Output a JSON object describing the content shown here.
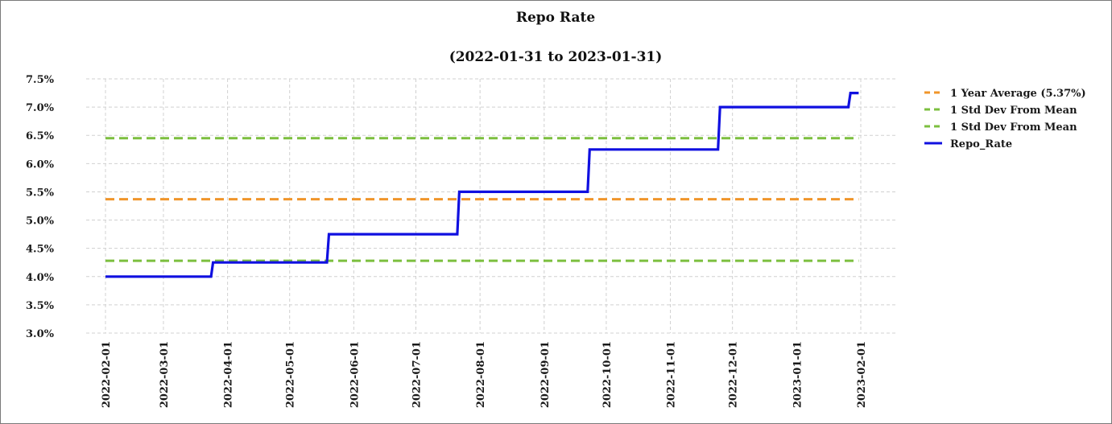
{
  "chart_data": {
    "type": "line",
    "title": "Repo Rate",
    "subtitle": "(2022-01-31 to 2023-01-31)",
    "xlabel": "",
    "ylabel": "",
    "x_range": [
      "2022-02-01",
      "2023-01-31"
    ],
    "ylim": [
      3.0,
      7.5
    ],
    "x_ticks": [
      "2022-02-01",
      "2022-03-01",
      "2022-04-01",
      "2022-05-01",
      "2022-06-01",
      "2022-07-01",
      "2022-08-01",
      "2022-09-01",
      "2022-10-01",
      "2022-11-01",
      "2022-12-01",
      "2023-01-01",
      "2023-02-01"
    ],
    "y_ticks": [
      3.0,
      3.5,
      4.0,
      4.5,
      5.0,
      5.5,
      6.0,
      6.5,
      7.0,
      7.5
    ],
    "y_tick_labels": [
      "3.0%",
      "3.5%",
      "4.0%",
      "4.5%",
      "5.0%",
      "5.5%",
      "6.0%",
      "6.5%",
      "7.0%",
      "7.5%"
    ],
    "grid": true,
    "legend_position": "right",
    "series": [
      {
        "name": "1 Year Average (5.37%)",
        "style": "dashed",
        "color": "#f0952a",
        "points": [
          [
            "2022-02-01",
            5.37
          ],
          [
            "2023-01-31",
            5.37
          ]
        ]
      },
      {
        "name": "1 Std Dev From Mean",
        "style": "dashed",
        "color": "#7cbf3f",
        "points": [
          [
            "2022-02-01",
            6.45
          ],
          [
            "2023-01-31",
            6.45
          ]
        ]
      },
      {
        "name": "1 Std Dev From Mean",
        "style": "dashed",
        "color": "#7cbf3f",
        "points": [
          [
            "2022-02-01",
            4.28
          ],
          [
            "2023-01-31",
            4.28
          ]
        ]
      },
      {
        "name": "Repo_Rate",
        "style": "solid",
        "color": "#1010e0",
        "points": [
          [
            "2022-02-01",
            4.0
          ],
          [
            "2022-03-24",
            4.0
          ],
          [
            "2022-03-25",
            4.25
          ],
          [
            "2022-05-19",
            4.25
          ],
          [
            "2022-05-20",
            4.75
          ],
          [
            "2022-07-21",
            4.75
          ],
          [
            "2022-07-22",
            5.5
          ],
          [
            "2022-09-22",
            5.5
          ],
          [
            "2022-09-23",
            6.25
          ],
          [
            "2022-11-24",
            6.25
          ],
          [
            "2022-11-25",
            7.0
          ],
          [
            "2023-01-26",
            7.0
          ],
          [
            "2023-01-27",
            7.25
          ],
          [
            "2023-01-31",
            7.25
          ]
        ]
      }
    ]
  }
}
